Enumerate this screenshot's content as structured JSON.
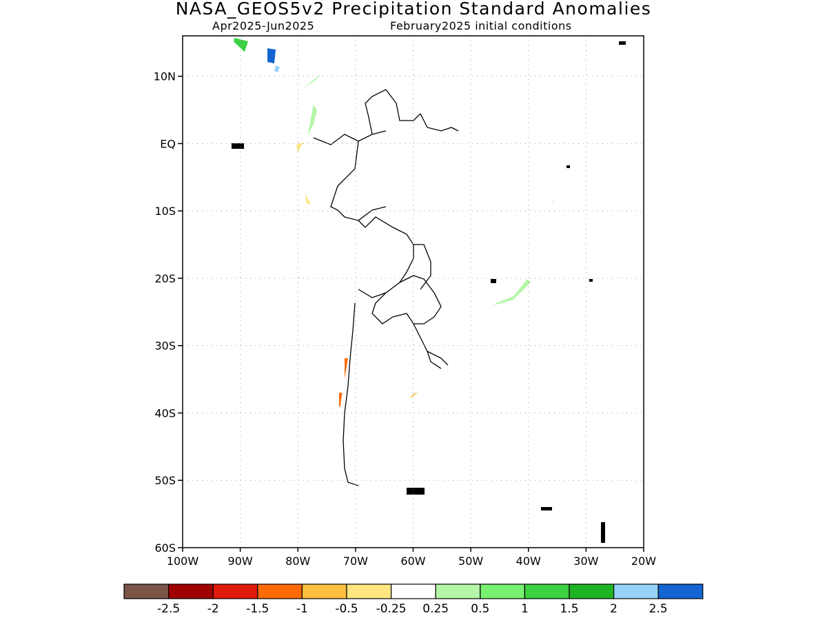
{
  "title": "NASA_GEOS5v2 Precipitation Standard Anomalies",
  "period": "Apr2025-Jun2025",
  "initial_conditions": "February2025 initial conditions",
  "lat_ticks": [
    {
      "value": 10,
      "label": "10N"
    },
    {
      "value": 0,
      "label": "EQ"
    },
    {
      "value": -10,
      "label": "10S"
    },
    {
      "value": -20,
      "label": "20S"
    },
    {
      "value": -30,
      "label": "30S"
    },
    {
      "value": -40,
      "label": "40S"
    },
    {
      "value": -50,
      "label": "50S"
    },
    {
      "value": -60,
      "label": "60S"
    }
  ],
  "lon_ticks": [
    {
      "value": -100,
      "label": "100W"
    },
    {
      "value": -90,
      "label": "90W"
    },
    {
      "value": -80,
      "label": "80W"
    },
    {
      "value": -70,
      "label": "70W"
    },
    {
      "value": -60,
      "label": "60W"
    },
    {
      "value": -50,
      "label": "50W"
    },
    {
      "value": -40,
      "label": "40W"
    },
    {
      "value": -30,
      "label": "30W"
    },
    {
      "value": -20,
      "label": "20W"
    }
  ],
  "extent": {
    "lon": [
      -100,
      -20
    ],
    "lat": [
      -60,
      16
    ]
  },
  "colorbar": {
    "colors": [
      "#7a5548",
      "#a00000",
      "#e01a0a",
      "#ff6a08",
      "#ffc040",
      "#ffe680",
      "#ffffff",
      "#b4f5a8",
      "#78f070",
      "#3cd042",
      "#1eb424",
      "#96d2fa",
      "#1464d2"
    ],
    "labels": [
      "-2.5",
      "-2",
      "-1.5",
      "-1",
      "-0.5",
      "-0.25",
      "0.25",
      "0.5",
      "1",
      "1.5",
      "2",
      "2.5"
    ]
  },
  "anomaly_colors": {
    "light_green": "#b4f5a8",
    "green": "#78f070",
    "dark_green": "#3cd042",
    "light_orange": "#ffe680",
    "orange": "#ffc040",
    "dark_orange": "#ff6a08",
    "red": "#e01a0a",
    "blue": "#1464d2",
    "light_blue": "#96d2fa"
  }
}
